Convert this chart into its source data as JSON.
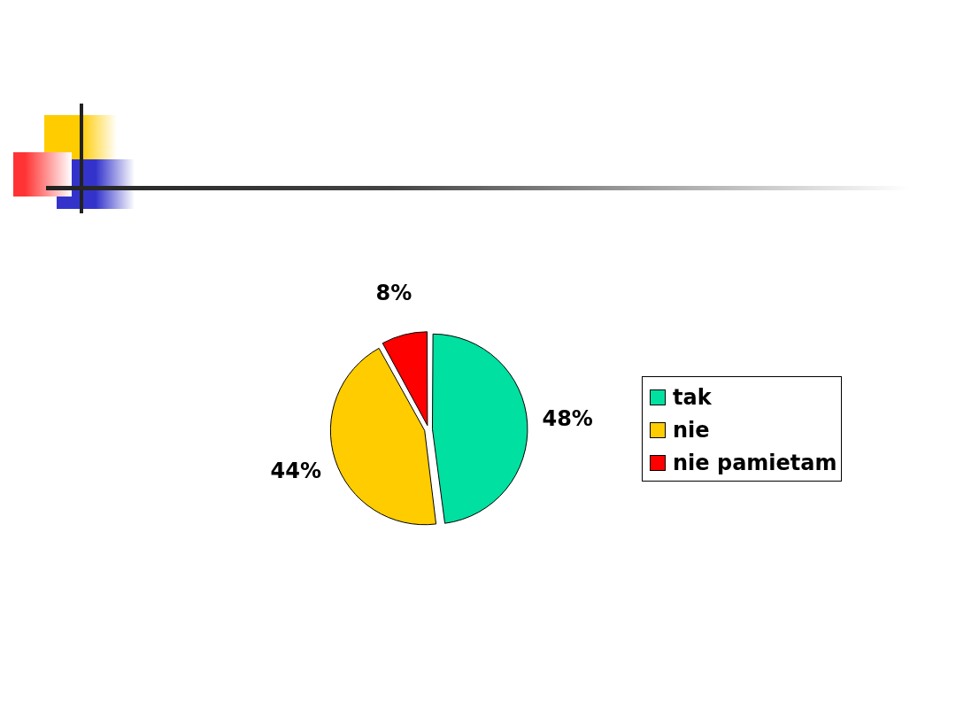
{
  "chart_data": {
    "type": "pie",
    "categories": [
      "tak",
      "nie",
      "nie pamietam"
    ],
    "values": [
      48,
      44,
      8
    ],
    "colors": [
      "#00e0a0",
      "#ffcc00",
      "#ff0000"
    ],
    "value_labels": [
      "48%",
      "44%",
      "8%"
    ],
    "legend": "right"
  }
}
